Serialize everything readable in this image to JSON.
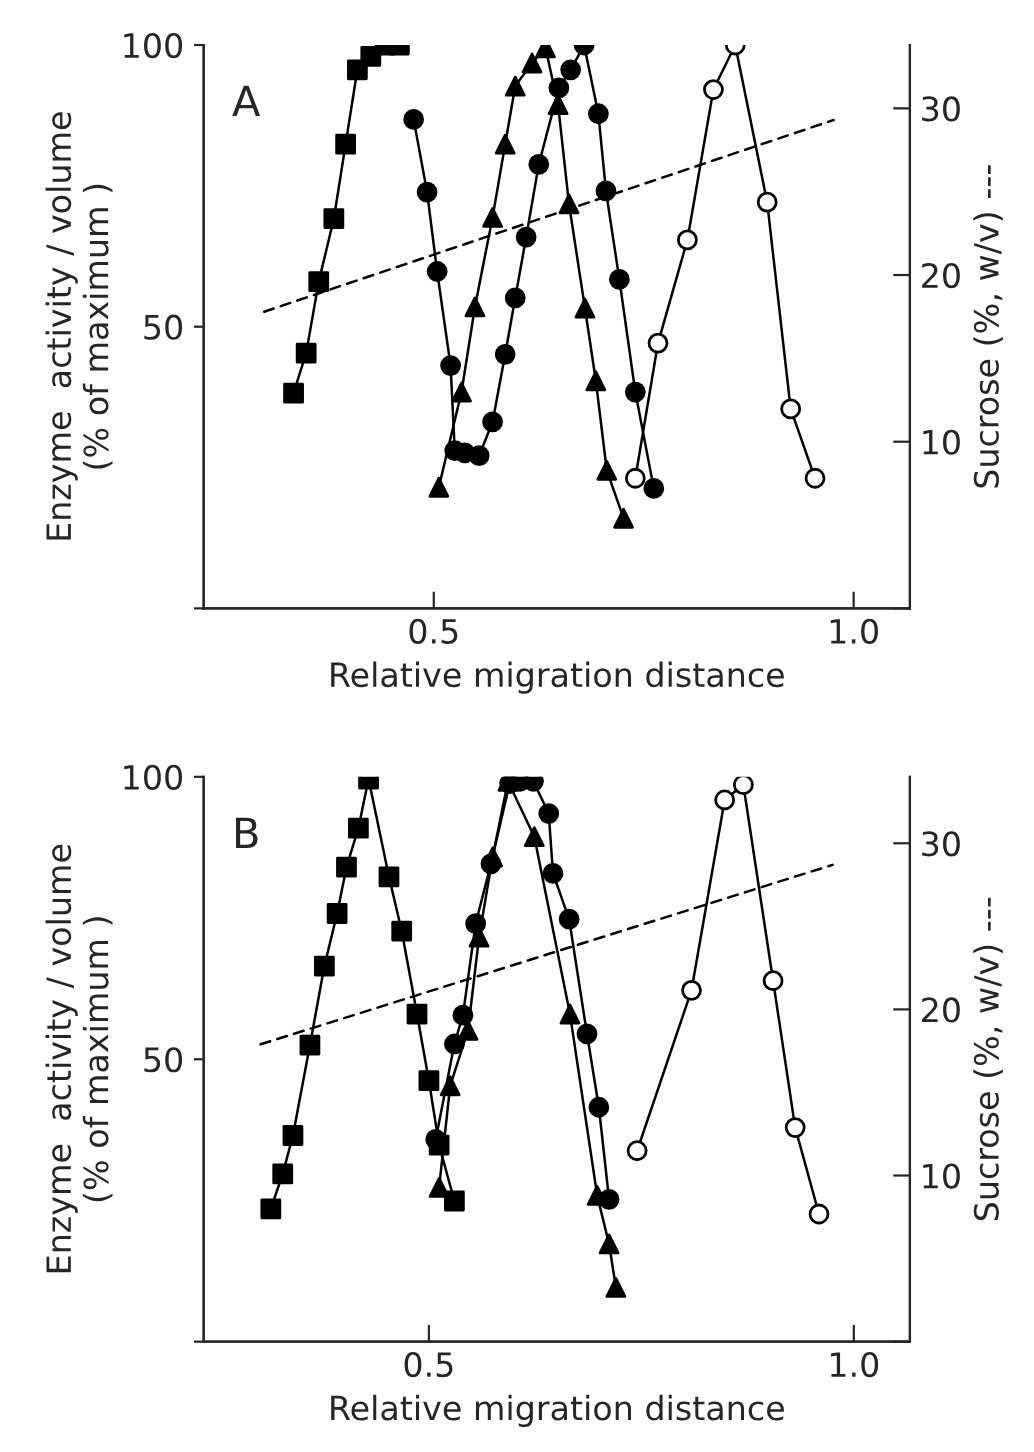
{
  "chart_data": [
    {
      "type": "line",
      "xlabel": "Relative migration distance",
      "ylabel": "Enzyme  activity / volume\n(% of maximum )",
      "y2label": "Sucrose (%, w/v) ---",
      "annotations": [
        "A"
      ],
      "xlim": [
        0.226,
        1.067
      ],
      "xticks": [
        0.5,
        {
          "value": 1.0,
          "label": "1.0"
        }
      ],
      "ylim": [
        0,
        100
      ],
      "yticks": [
        {
          "value": 0,
          "label": null
        },
        50,
        100
      ],
      "y2lim": [
        0,
        33.8
      ],
      "y2ticks": [
        {
          "value": 0,
          "label": null
        },
        10,
        20,
        30
      ],
      "grid": false,
      "legend": false,
      "series": [
        {
          "color": "#000000",
          "marker": "square",
          "line_style": "solid",
          "x": [
            0.333,
            0.348,
            0.363,
            0.381,
            0.395,
            0.409,
            0.425,
            0.442,
            0.459
          ],
          "values": [
            38.2,
            45.3,
            58.0,
            69.2,
            82.4,
            95.6,
            98.0,
            100,
            100
          ]
        },
        {
          "color": "#000000",
          "marker": "circle",
          "line_style": "solid",
          "x": [
            0.476,
            0.492,
            0.504,
            0.52,
            0.525,
            0.537,
            0.554,
            0.57,
            0.585,
            0.597,
            0.61,
            0.625,
            0.649,
            0.663,
            0.679,
            0.696,
            0.705,
            0.721,
            0.74,
            0.762
          ],
          "values": [
            86.8,
            73.9,
            59.8,
            43.1,
            28.0,
            27.6,
            27.1,
            33.1,
            45.1,
            55.1,
            65.9,
            78.8,
            92.4,
            95.6,
            100,
            87.8,
            74.1,
            58.4,
            38.4,
            21.3
          ]
        },
        {
          "color": "#000000",
          "marker": "triangle",
          "line_style": "solid",
          "x": [
            0.506,
            0.533,
            0.549,
            0.57,
            0.585,
            0.597,
            0.617,
            0.633,
            0.648,
            0.661,
            0.68,
            0.693,
            0.706,
            0.726
          ],
          "values": [
            21.5,
            38.4,
            53.5,
            69.4,
            82.4,
            92.7,
            96.8,
            99.5,
            89.4,
            71.8,
            53.3,
            40.4,
            24.5,
            16.0
          ]
        },
        {
          "color": "#000000",
          "colors": [
            "#ffffff",
            "#ffffff",
            "#ffffff",
            "#ffffff",
            "#ffffff",
            "#ffffff",
            "#ffffff",
            "#ffffff"
          ],
          "marker": "circle",
          "line_style": "solid",
          "x": [
            0.74,
            0.767,
            0.802,
            0.833,
            0.859,
            0.897,
            0.925,
            0.954
          ],
          "values": [
            23.1,
            47.1,
            65.4,
            92.1,
            100,
            72.1,
            35.4,
            23.1
          ]
        },
        {
          "color": "#000000",
          "marker": "none",
          "line_style": "dashed",
          "axis": "y2",
          "x": [
            0.298,
            0.976
          ],
          "values": [
            17.8,
            29.3
          ]
        }
      ]
    },
    {
      "type": "line",
      "xlabel": "Relative migration distance",
      "ylabel": "Enzyme  activity / volume\n(% of maximum )",
      "y2label": "Sucrose (%, w/v) ---",
      "annotations": [
        "B"
      ],
      "xlim": [
        0.235,
        1.066
      ],
      "xticks": [
        0.5,
        {
          "value": 1.0,
          "label": "1.0"
        }
      ],
      "ylim": [
        0,
        100
      ],
      "yticks": [
        {
          "value": 0,
          "label": null
        },
        50,
        100
      ],
      "y2lim": [
        0,
        34
      ],
      "y2ticks": [
        {
          "value": 0,
          "label": null
        },
        10,
        20,
        30
      ],
      "grid": false,
      "legend": false,
      "series": [
        {
          "color": "#000000",
          "marker": "square",
          "line_style": "solid",
          "x": [
            0.314,
            0.328,
            0.34,
            0.36,
            0.377,
            0.392,
            0.403,
            0.417,
            0.429,
            0.453,
            0.468,
            0.486,
            0.5,
            0.512,
            0.53
          ],
          "values": [
            23.5,
            29.7,
            36.5,
            52.5,
            66.5,
            75.8,
            84.0,
            90.9,
            99.6,
            82.3,
            72.7,
            58.0,
            46.2,
            34.8,
            24.9
          ]
        },
        {
          "color": "#000000",
          "marker": "circle",
          "line_style": "solid",
          "x": [
            0.508,
            0.53,
            0.54,
            0.555,
            0.573,
            0.595,
            0.607,
            0.623,
            0.641,
            0.646,
            0.665,
            0.686,
            0.7,
            0.712
          ],
          "values": [
            35.8,
            52.7,
            57.8,
            74.0,
            84.6,
            98.8,
            99.2,
            99.2,
            93.5,
            82.9,
            74.8,
            54.5,
            41.5,
            25.2
          ]
        },
        {
          "color": "#000000",
          "marker": "triangle",
          "line_style": "solid",
          "x": [
            0.512,
            0.525,
            0.546,
            0.559,
            0.575,
            0.593,
            0.624,
            0.666,
            0.698,
            0.712,
            0.72
          ],
          "values": [
            27.3,
            45.3,
            55.1,
            71.6,
            85.8,
            99.2,
            89.4,
            58.0,
            25.9,
            17.3,
            9.6
          ]
        },
        {
          "color": "#000000",
          "colors": [
            "#ffffff",
            "#ffffff",
            "#ffffff",
            "#ffffff",
            "#ffffff",
            "#ffffff",
            "#ffffff"
          ],
          "marker": "circle",
          "line_style": "solid",
          "x": [
            0.745,
            0.809,
            0.848,
            0.87,
            0.905,
            0.931,
            0.959
          ],
          "values": [
            33.8,
            62.2,
            95.9,
            98.6,
            63.9,
            37.9,
            22.6
          ]
        },
        {
          "color": "#000000",
          "marker": "none",
          "line_style": "dashed",
          "axis": "y2",
          "x": [
            0.302,
            0.975
          ],
          "values": [
            17.9,
            28.7
          ]
        }
      ]
    }
  ]
}
